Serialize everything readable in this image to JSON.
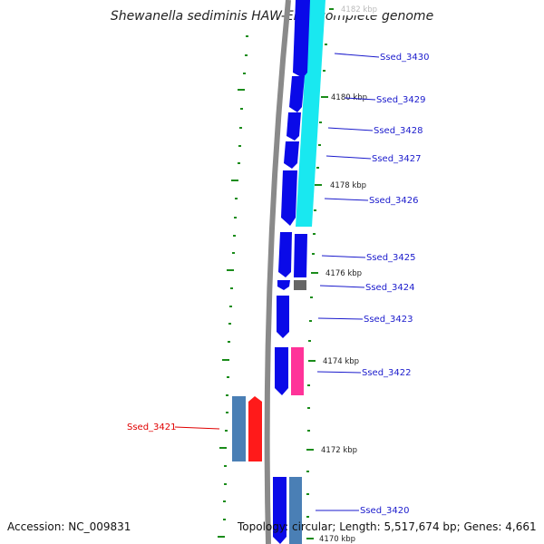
{
  "title": "Shewanella sediminis HAW-EB3, complete genome",
  "footer": {
    "accession": "Accession: NC_009831",
    "topology": "Topology: circular; Length: 5,517,674 bp; Genes: 4,661"
  },
  "colors": {
    "forward_cds": "#0a0ae8",
    "reverse_cds": "#4a7fb5",
    "highlight_gene": "#ff1a1a",
    "rna_gene": "#ff3399",
    "pseudo_gene": "#666666",
    "blast_hit": "#19e8f0",
    "backbone": "#8a8a8a",
    "tick": "#1a8c1a",
    "label_blue": "#1a1acc",
    "label_red": "#e00000"
  },
  "gene_labels": [
    {
      "text": "Ssed_3430"
    },
    {
      "text": "Ssed_3429"
    },
    {
      "text": "Ssed_3428"
    },
    {
      "text": "Ssed_3427"
    },
    {
      "text": "Ssed_3426"
    },
    {
      "text": "Ssed_3425"
    },
    {
      "text": "Ssed_3424"
    },
    {
      "text": "Ssed_3423"
    },
    {
      "text": "Ssed_3422"
    },
    {
      "text": "Ssed_3420"
    },
    {
      "text": "Ssed_3421"
    }
  ],
  "tick_labels": [
    "4182 kbp",
    "4180 kbp",
    "4178 kbp",
    "4176 kbp",
    "4174 kbp",
    "4172 kbp",
    "4170 kbp"
  ]
}
